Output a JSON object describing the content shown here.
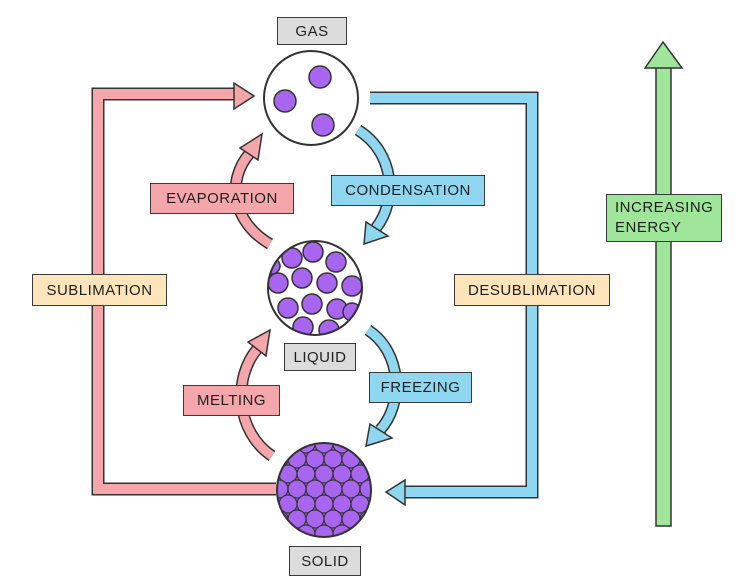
{
  "states": {
    "gas": "GAS",
    "liquid": "LIQUID",
    "solid": "SOLID"
  },
  "transitions": {
    "evaporation": "EVAPORATION",
    "condensation": "CONDENSATION",
    "melting": "MELTING",
    "freezing": "FREEZING",
    "sublimation": "SUBLIMATION",
    "desublimation": "DESUBLIMATION"
  },
  "energy": {
    "line1": "INCREASING",
    "line2": "ENERGY"
  },
  "colors": {
    "heating_arrow": "#f4a6ab",
    "cooling_arrow": "#8fd7f1",
    "energy_arrow": "#9fe69a",
    "particle": "#a866f0",
    "state_label": "#dcdcdc",
    "sublimation_label": "#fde4bb"
  }
}
